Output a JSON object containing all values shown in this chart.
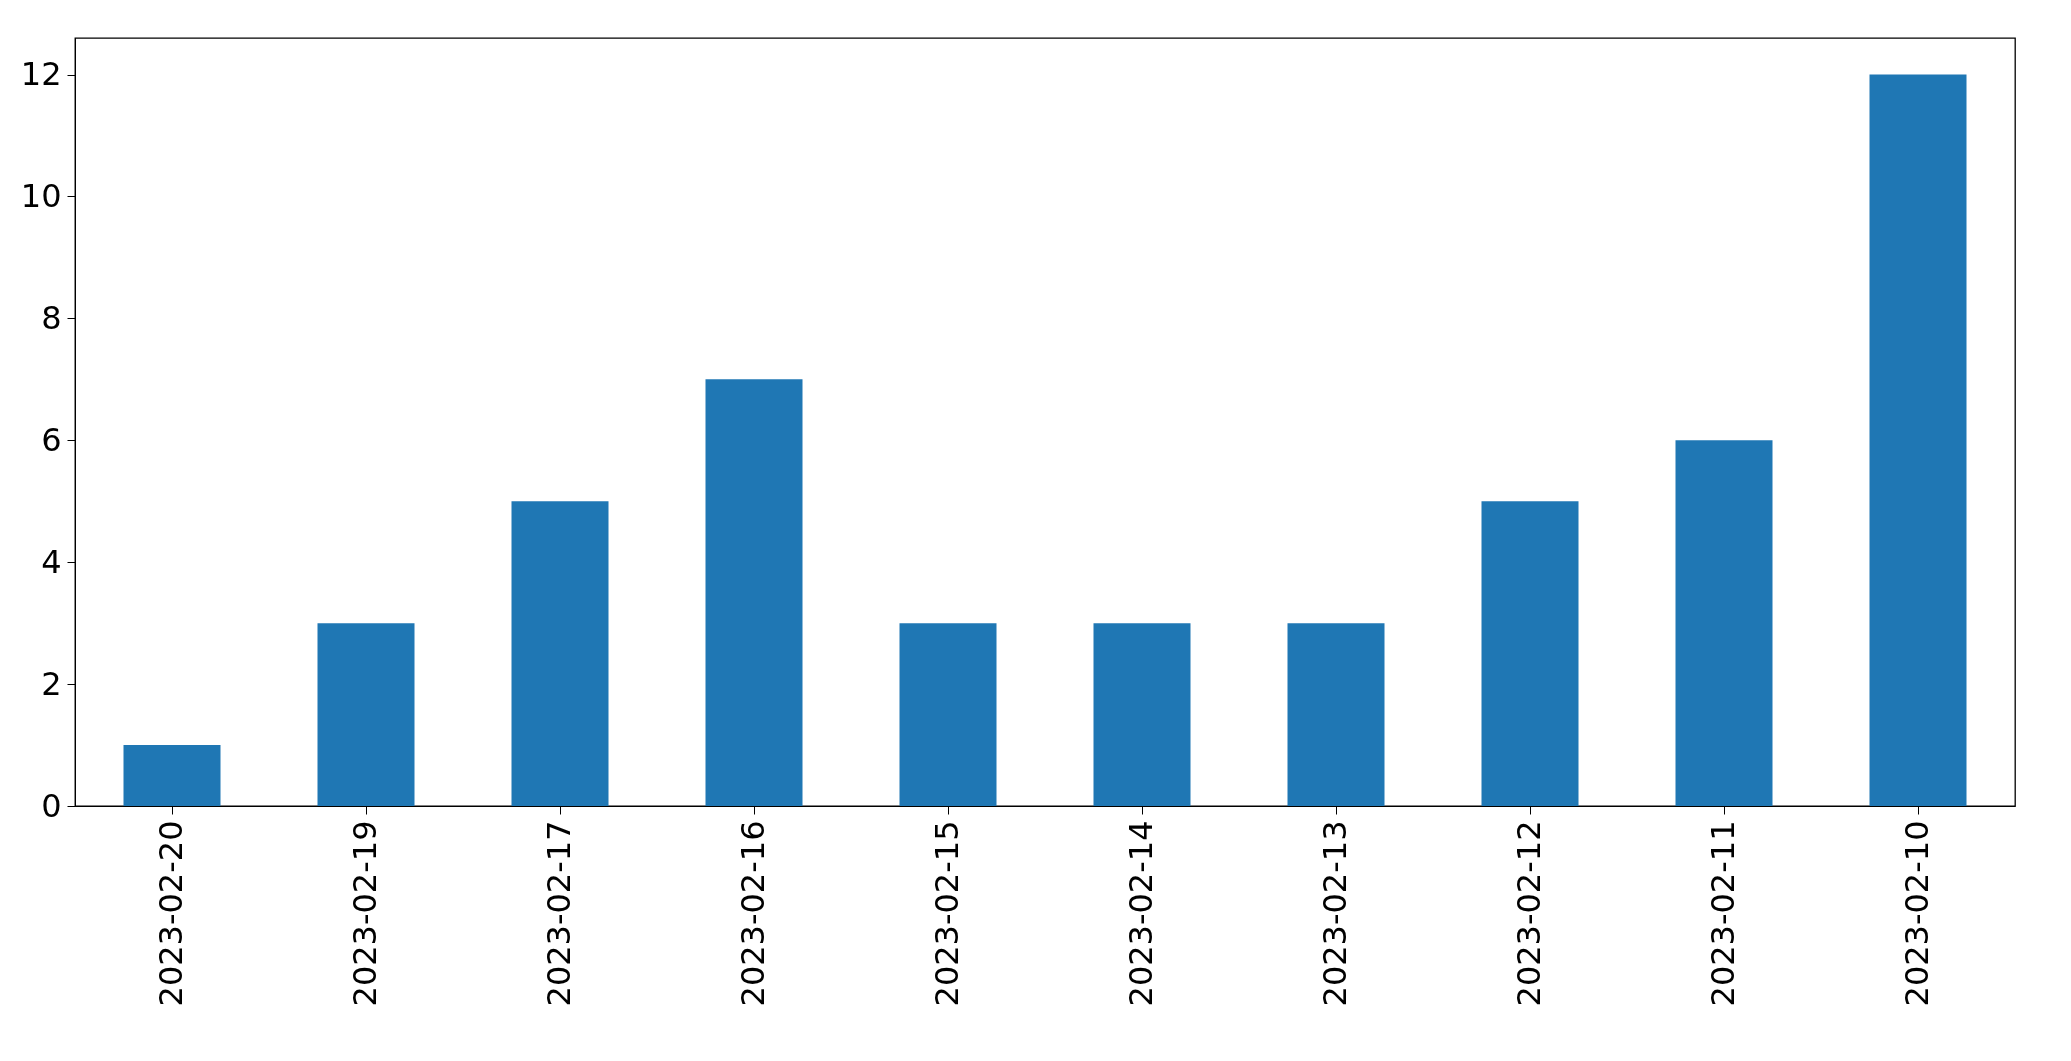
{
  "chart_data": {
    "type": "bar",
    "categories": [
      "2023-02-20",
      "2023-02-19",
      "2023-02-17",
      "2023-02-16",
      "2023-02-15",
      "2023-02-14",
      "2023-02-13",
      "2023-02-12",
      "2023-02-11",
      "2023-02-10"
    ],
    "values": [
      1,
      3,
      5,
      7,
      3,
      3,
      3,
      5,
      6,
      12
    ],
    "color": "#1f77b4",
    "ylim": [
      0,
      12.6
    ],
    "yticks": [
      0,
      2,
      4,
      6,
      8,
      10,
      12
    ],
    "grid": false
  }
}
